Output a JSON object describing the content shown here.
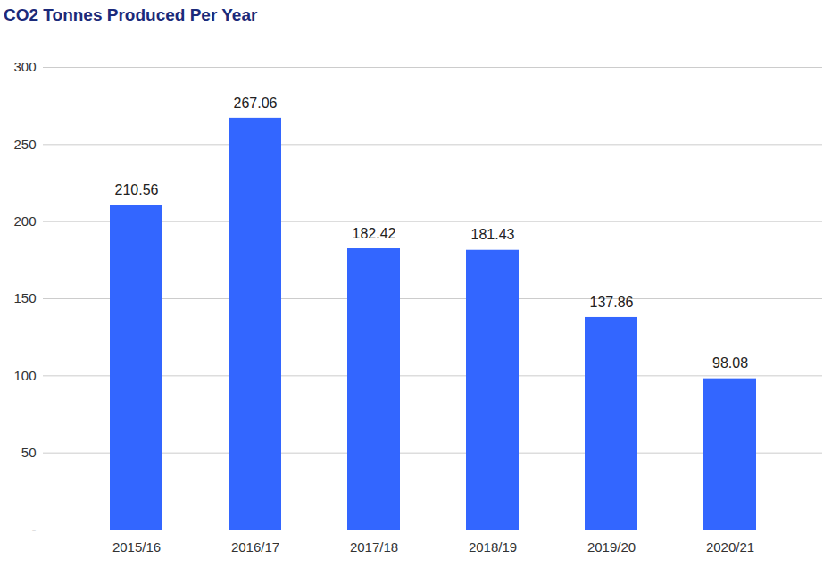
{
  "chart_data": {
    "type": "bar",
    "title": "CO2 Tonnes Produced Per Year",
    "categories": [
      "2015/16",
      "2016/17",
      "2017/18",
      "2018/19",
      "2019/20",
      "2020/21"
    ],
    "values": [
      210.56,
      267.06,
      182.42,
      181.43,
      137.86,
      98.08
    ],
    "color": "#3366ff",
    "ylim": [
      0,
      300
    ],
    "yticks": [
      {
        "value": 0,
        "label": "-"
      },
      50,
      100,
      150,
      200,
      250,
      300
    ],
    "grid": true,
    "data_labels": true
  }
}
